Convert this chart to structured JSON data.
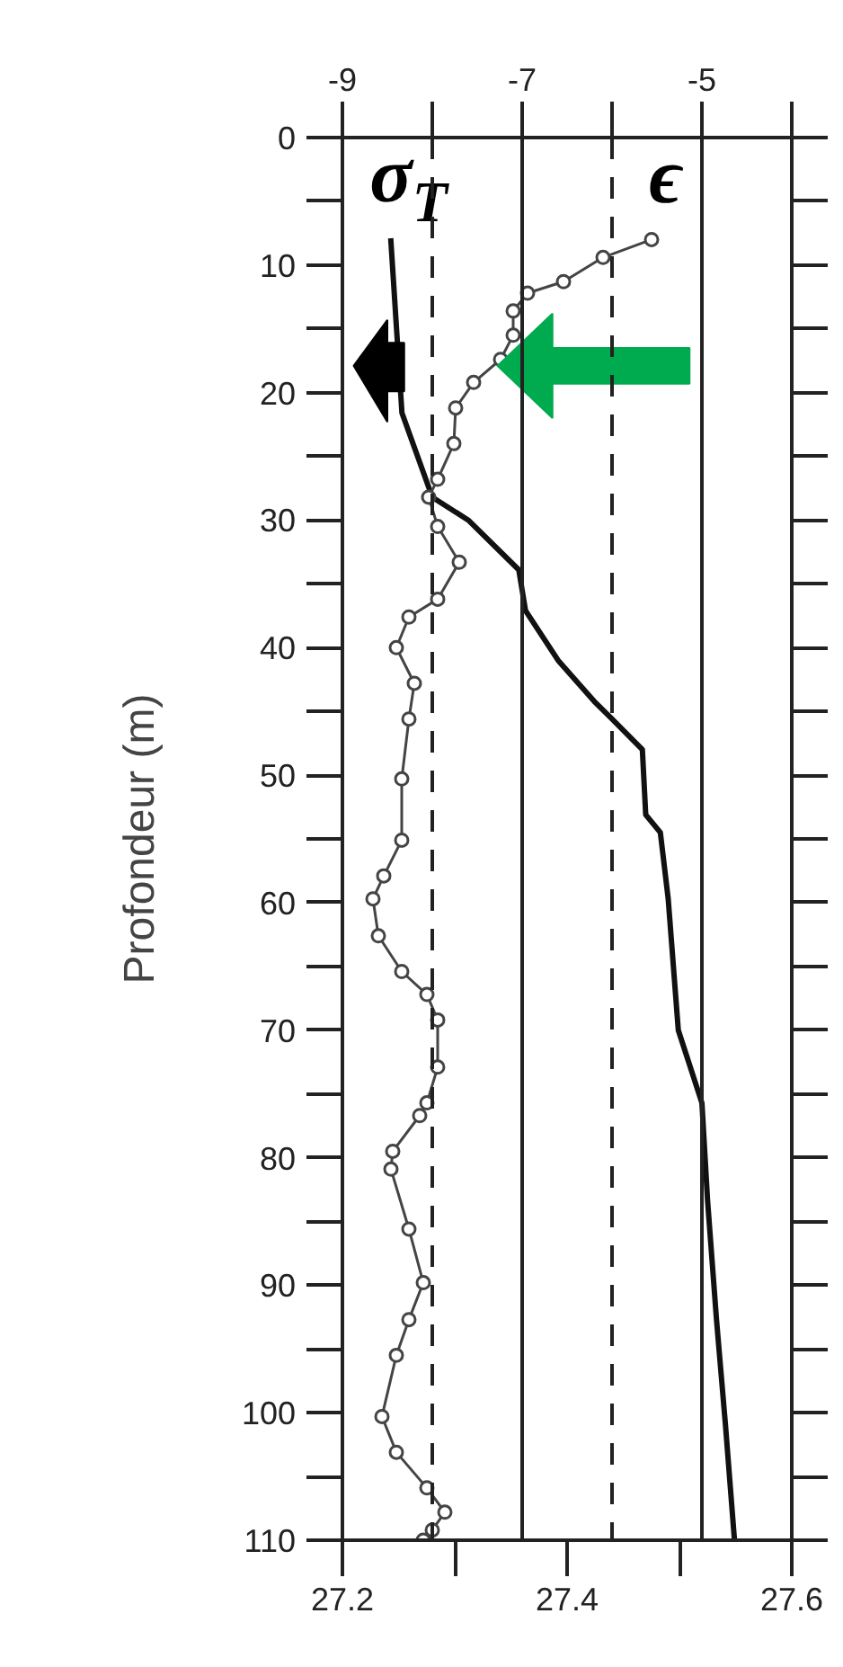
{
  "chart_data": {
    "type": "line",
    "ylabel": "Profondeur (m)",
    "ylim": [
      110,
      0
    ],
    "yticks": [
      0,
      10,
      20,
      30,
      40,
      50,
      60,
      70,
      80,
      90,
      100,
      110
    ],
    "xlim": [
      27.2,
      27.6
    ],
    "xticks": [
      27.2,
      27.4,
      27.6
    ],
    "x2lim": [
      -9,
      -4
    ],
    "x2ticks": [
      -9,
      -7,
      -5
    ],
    "grid": false,
    "ref_lines": [
      {
        "axis": "x2",
        "value": -8,
        "line_style": "dashed",
        "color": "#222222"
      },
      {
        "axis": "x2",
        "value": -7,
        "line_style": "solid",
        "color": "#222222"
      },
      {
        "axis": "x2",
        "value": -6,
        "line_style": "dashed",
        "color": "#222222"
      },
      {
        "axis": "x2",
        "value": -5,
        "line_style": "solid",
        "color": "#222222"
      }
    ],
    "series": [
      {
        "name": "σ$_{T}$",
        "color": "#111111",
        "marker": "none",
        "line_style": "solid",
        "x": [
          27.243,
          27.253,
          27.28,
          27.312,
          27.357,
          27.363,
          27.392,
          27.424,
          27.44,
          27.467,
          27.47,
          27.483,
          27.49,
          27.499,
          27.52,
          27.525,
          27.533,
          27.541,
          27.549
        ],
        "values": [
          7.9,
          21.6,
          28.2,
          30,
          33.9,
          37.1,
          41,
          44.2,
          45.6,
          48,
          53.1,
          54.5,
          59.7,
          70,
          75.7,
          83.3,
          92.7,
          101,
          110
        ]
      },
      {
        "name": "ϵ",
        "color": "#444444",
        "marker": "circle",
        "line_style": "solid",
        "axis": "x2",
        "x": [
          -5.56,
          -6.1,
          -6.54,
          -6.94,
          -7.1,
          -7.1,
          -7.24,
          -7.54,
          -7.74,
          -7.76,
          -7.94,
          -8.04,
          -7.94,
          -7.7,
          -7.94,
          -8.26,
          -8.4,
          -8.2,
          -8.26,
          -8.34,
          -8.34,
          -8.54,
          -8.66,
          -8.6,
          -8.34,
          -8.06,
          -7.94,
          -7.94,
          -8.06,
          -8.14,
          -8.44,
          -8.46,
          -8.26,
          -8.1,
          -8.26,
          -8.4,
          -8.56,
          -8.4,
          -8.06,
          -7.86,
          -8.0,
          -8.1
        ],
        "values": [
          8,
          9.4,
          11.3,
          12.2,
          13.6,
          15.5,
          17.4,
          19.2,
          21.2,
          24,
          26.8,
          28.2,
          30.5,
          33.3,
          36.2,
          37.6,
          40,
          42.8,
          45.6,
          50.3,
          55.1,
          57.9,
          59.7,
          62.6,
          65.4,
          67.2,
          69.2,
          72.9,
          75.7,
          76.7,
          79.5,
          80.9,
          85.6,
          89.8,
          92.7,
          95.5,
          100.3,
          103.1,
          105.9,
          107.8,
          109.2,
          110
        ]
      }
    ]
  }
}
